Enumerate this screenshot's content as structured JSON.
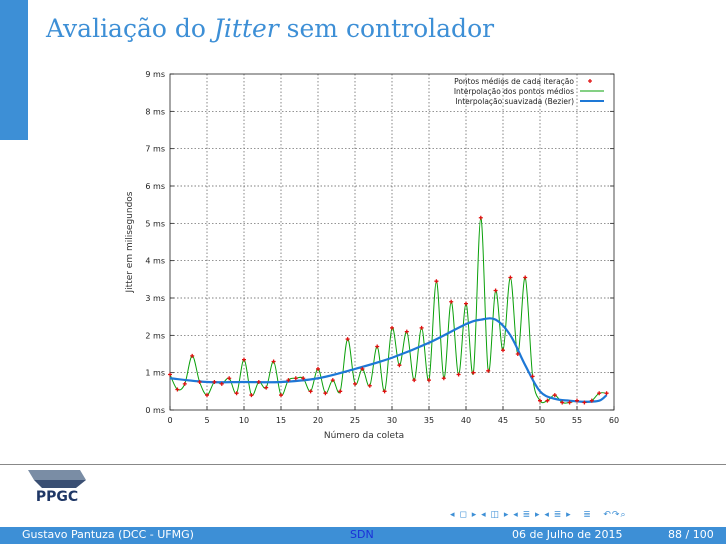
{
  "slide": {
    "title_prefix": "Avaliação do ",
    "title_italic": "Jitter",
    "title_suffix": " sem controlador"
  },
  "footer": {
    "author": "Gustavo Pantuza (DCC - UFMG)",
    "short_title": "SDN",
    "date": "06 de Julho de 2015",
    "page": "88 / 100"
  },
  "logo": {
    "text": "PPGC"
  },
  "colors": {
    "accent": "#3d8fd6",
    "green": "#0aa00a",
    "blue": "#1e78d6",
    "red": "#e01010"
  },
  "chart_data": {
    "type": "line",
    "title": "",
    "xlabel": "Número da coleta",
    "ylabel": "Jitter em milisegundos",
    "xlim": [
      0,
      60
    ],
    "ylim": [
      0,
      9
    ],
    "xticks": [
      0,
      5,
      10,
      15,
      20,
      25,
      30,
      35,
      40,
      45,
      50,
      55,
      60
    ],
    "yticks": [
      0,
      1,
      2,
      3,
      4,
      5,
      6,
      7,
      8,
      9
    ],
    "ytick_labels": [
      "0 ms",
      "1 ms",
      "2 ms",
      "3 ms",
      "4 ms",
      "5 ms",
      "6 ms",
      "7 ms",
      "8 ms",
      "9 ms"
    ],
    "grid": true,
    "legend_position": "top-right",
    "series": [
      {
        "name": "Pontos médios de cada iteração",
        "style": "points",
        "x": [
          0,
          1,
          2,
          3,
          4,
          5,
          6,
          7,
          8,
          9,
          10,
          11,
          12,
          13,
          14,
          15,
          16,
          17,
          18,
          19,
          20,
          21,
          22,
          23,
          24,
          25,
          26,
          27,
          28,
          29,
          30,
          31,
          32,
          33,
          34,
          35,
          36,
          37,
          38,
          39,
          40,
          41,
          42,
          43,
          44,
          45,
          46,
          47,
          48,
          49,
          50,
          51,
          52,
          53,
          54,
          55,
          56,
          57,
          58,
          59
        ],
        "values": [
          0.95,
          0.55,
          0.7,
          1.45,
          0.75,
          0.4,
          0.75,
          0.7,
          0.85,
          0.45,
          1.35,
          0.4,
          0.75,
          0.6,
          1.3,
          0.4,
          0.8,
          0.85,
          0.85,
          0.5,
          1.1,
          0.45,
          0.8,
          0.5,
          1.9,
          0.7,
          1.1,
          0.65,
          1.7,
          0.5,
          2.2,
          1.2,
          2.1,
          0.8,
          2.2,
          0.8,
          3.45,
          0.85,
          2.9,
          0.95,
          2.85,
          1.0,
          5.15,
          1.05,
          3.2,
          1.6,
          3.55,
          1.5,
          3.55,
          0.9,
          0.25,
          0.25,
          0.4,
          0.2,
          0.2,
          0.25,
          0.2,
          0.25,
          0.45,
          0.45
        ]
      },
      {
        "name": "Interpolação dos pontos médios",
        "style": "smooth-line"
      },
      {
        "name": "Interpolação suavizada (Bezier)",
        "style": "bezier",
        "x": [
          0,
          5,
          10,
          15,
          20,
          25,
          30,
          35,
          40,
          42,
          44,
          46,
          48,
          50,
          52,
          54,
          56,
          58,
          59
        ],
        "values": [
          0.85,
          0.75,
          0.75,
          0.75,
          0.85,
          1.1,
          1.4,
          1.8,
          2.3,
          2.42,
          2.42,
          2.0,
          1.2,
          0.5,
          0.3,
          0.25,
          0.22,
          0.25,
          0.4
        ]
      }
    ]
  }
}
